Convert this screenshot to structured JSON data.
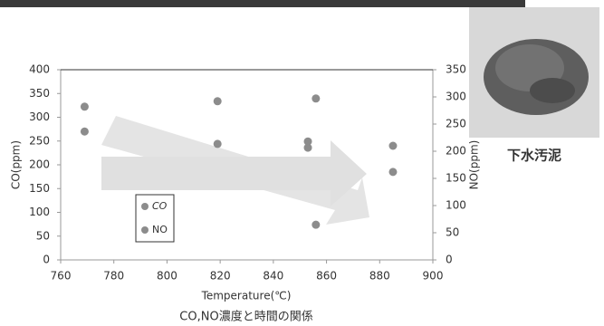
{
  "chart_data": {
    "type": "scatter",
    "title": "CO,NO濃度と時間の関係",
    "x_label": "Temperature(℃)",
    "y_label": "CO(ppm)",
    "y2_label": "NO(ppm)",
    "xlim": [
      760,
      900
    ],
    "xticks": [
      760,
      780,
      800,
      820,
      840,
      860,
      880,
      900
    ],
    "ylim": [
      0,
      400
    ],
    "yticks": [
      0,
      50,
      100,
      150,
      200,
      250,
      300,
      350,
      400
    ],
    "y2lim": [
      0,
      350
    ],
    "y2ticks": [
      0,
      50,
      100,
      150,
      200,
      250,
      300,
      350
    ],
    "series": [
      {
        "name": "CO",
        "color": "#8c8c8c",
        "x": [
          769,
          819,
          853,
          856,
          885
        ],
        "values": [
          270,
          244,
          236,
          74,
          185
        ]
      },
      {
        "name": "NO",
        "color": "#8c8c8c",
        "axis": "y2",
        "x": [
          769,
          819,
          853,
          856,
          885
        ],
        "values": [
          282,
          292,
          218,
          297,
          210
        ]
      }
    ]
  },
  "photo_caption": "下水汚泥"
}
